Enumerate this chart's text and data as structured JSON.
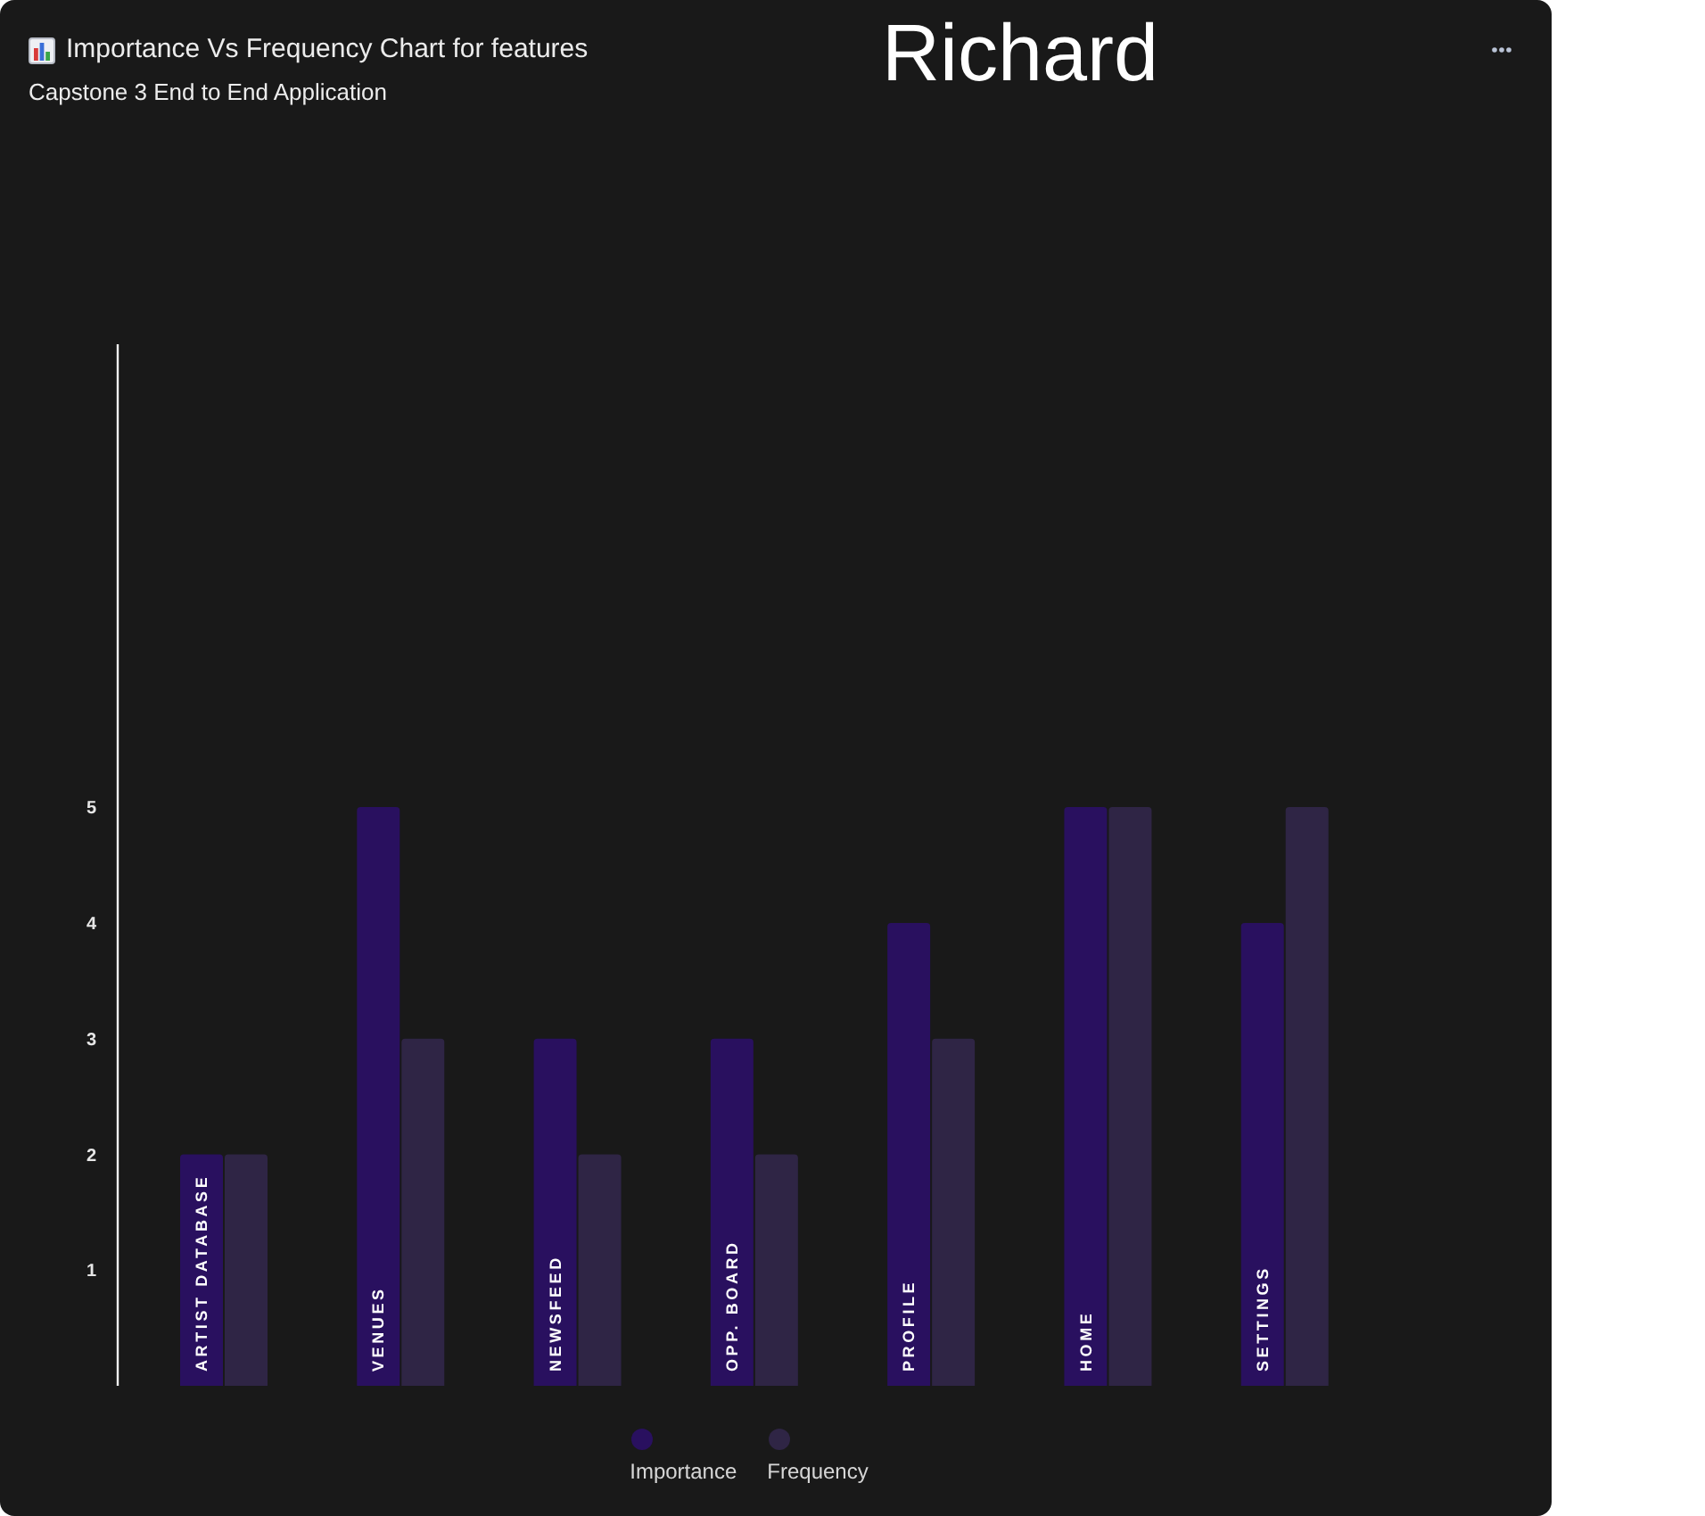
{
  "chart_data": {
    "type": "bar",
    "title": "Importance Vs Frequency Chart for features",
    "subtitle": "Capstone 3 End to End Application",
    "annotations": [
      "Richard"
    ],
    "categories": [
      "ARTIST DATABASE",
      "VENUES",
      "NEWSFEED",
      "OPP. BOARD",
      "PROFILE",
      "HOME",
      "SETTINGS"
    ],
    "series": [
      {
        "name": "Importance",
        "color": "#29105f",
        "values": [
          2,
          5,
          3,
          3,
          4,
          5,
          4
        ]
      },
      {
        "name": "Frequency",
        "color": "#2f2545",
        "values": [
          2,
          3,
          2,
          2,
          3,
          5,
          5
        ]
      }
    ],
    "ylim": [
      0,
      9
    ],
    "yticks": [
      1,
      2,
      3,
      4,
      5
    ],
    "legend": "bottom"
  }
}
